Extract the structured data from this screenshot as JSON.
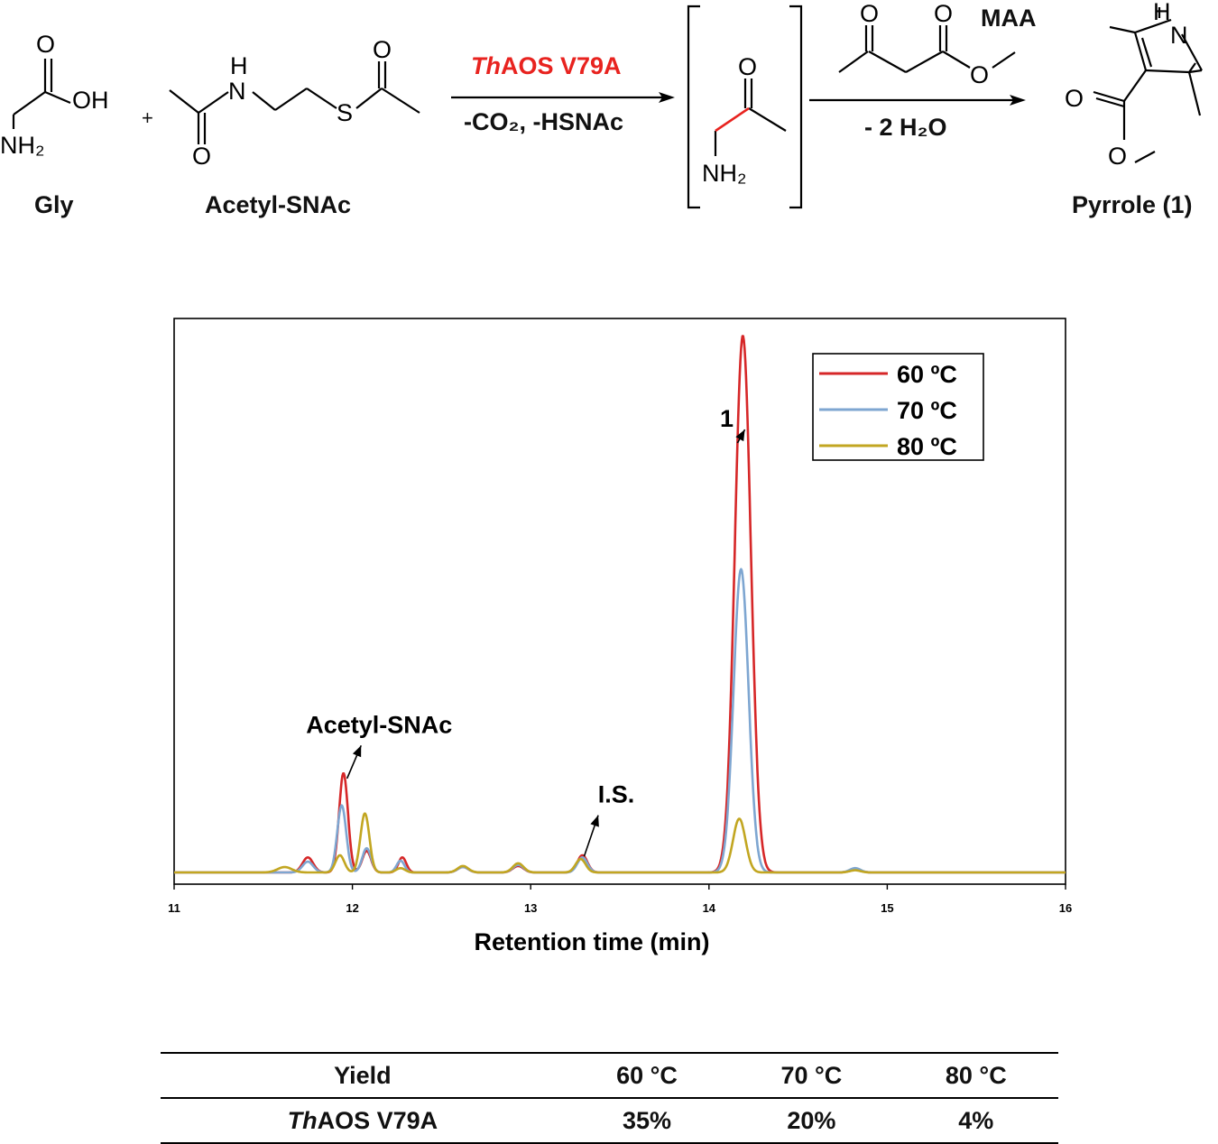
{
  "scheme": {
    "reactant1": "Gly",
    "plus": "+",
    "reactant2": "Acetyl-SNAc",
    "enzyme_italic": "Th",
    "enzyme_rest": "AOS V79A",
    "byproducts_step1": "-CO₂, -HSNAc",
    "reagent2": "MAA",
    "byproducts_step2": "- 2 H₂O",
    "product": "Pyrrole (1)",
    "atoms": {
      "O": "O",
      "OH": "OH",
      "NH2": "NH₂",
      "H": "H",
      "N": "N",
      "S": "S"
    },
    "accent_color": "#e8231f"
  },
  "chart_data": {
    "type": "line",
    "xlabel": "Retention time (min)",
    "ylabel": "",
    "xlim": [
      11,
      16
    ],
    "ylim": [
      0,
      1.05
    ],
    "x_ticks": [
      "11",
      "12",
      "13",
      "14",
      "15",
      "16"
    ],
    "grid": false,
    "legend_position": "top-right",
    "series": [
      {
        "name": "60 ºC",
        "color": "#d62728",
        "peaks": [
          {
            "x": 11.75,
            "h": 0.028,
            "w": 0.03
          },
          {
            "x": 11.95,
            "h": 0.185,
            "w": 0.025
          },
          {
            "x": 12.08,
            "h": 0.04,
            "w": 0.025
          },
          {
            "x": 12.28,
            "h": 0.028,
            "w": 0.022
          },
          {
            "x": 12.62,
            "h": 0.01,
            "w": 0.03
          },
          {
            "x": 12.93,
            "h": 0.012,
            "w": 0.03
          },
          {
            "x": 13.29,
            "h": 0.032,
            "w": 0.028
          },
          {
            "x": 14.19,
            "h": 1.0,
            "w": 0.045
          },
          {
            "x": 14.82,
            "h": 0.006,
            "w": 0.03
          }
        ]
      },
      {
        "name": "70 ºC",
        "color": "#7ea6d1",
        "peaks": [
          {
            "x": 11.75,
            "h": 0.02,
            "w": 0.03
          },
          {
            "x": 11.94,
            "h": 0.125,
            "w": 0.025
          },
          {
            "x": 12.08,
            "h": 0.045,
            "w": 0.025
          },
          {
            "x": 12.27,
            "h": 0.022,
            "w": 0.022
          },
          {
            "x": 12.62,
            "h": 0.01,
            "w": 0.03
          },
          {
            "x": 12.93,
            "h": 0.014,
            "w": 0.03
          },
          {
            "x": 13.29,
            "h": 0.028,
            "w": 0.028
          },
          {
            "x": 14.18,
            "h": 0.565,
            "w": 0.042
          },
          {
            "x": 14.82,
            "h": 0.008,
            "w": 0.03
          }
        ]
      },
      {
        "name": "80 ºC",
        "color": "#c2a621",
        "peaks": [
          {
            "x": 11.62,
            "h": 0.01,
            "w": 0.04
          },
          {
            "x": 11.93,
            "h": 0.032,
            "w": 0.025
          },
          {
            "x": 12.07,
            "h": 0.11,
            "w": 0.025
          },
          {
            "x": 12.27,
            "h": 0.008,
            "w": 0.025
          },
          {
            "x": 12.62,
            "h": 0.012,
            "w": 0.03
          },
          {
            "x": 12.93,
            "h": 0.017,
            "w": 0.03
          },
          {
            "x": 13.28,
            "h": 0.025,
            "w": 0.028
          },
          {
            "x": 14.17,
            "h": 0.1,
            "w": 0.035
          },
          {
            "x": 14.82,
            "h": 0.004,
            "w": 0.03
          }
        ]
      }
    ],
    "annotations": [
      {
        "text": "1",
        "x": 14.1,
        "y": 0.83,
        "target_x": 14.16,
        "target_y": 0.8
      },
      {
        "text": "Acetyl-SNAc",
        "x": 12.15,
        "y": 0.26,
        "target_x": 11.97,
        "target_y": 0.175
      },
      {
        "text": "I.S.",
        "x": 13.48,
        "y": 0.13,
        "target_x": 13.3,
        "target_y": 0.03
      }
    ]
  },
  "table": {
    "headers": [
      "Yield",
      "60 °C",
      "70 °C",
      "80 °C"
    ],
    "row_label_italic": "Th",
    "row_label_rest": "AOS V79A",
    "row_values": [
      "35%",
      "20%",
      "4%"
    ]
  }
}
